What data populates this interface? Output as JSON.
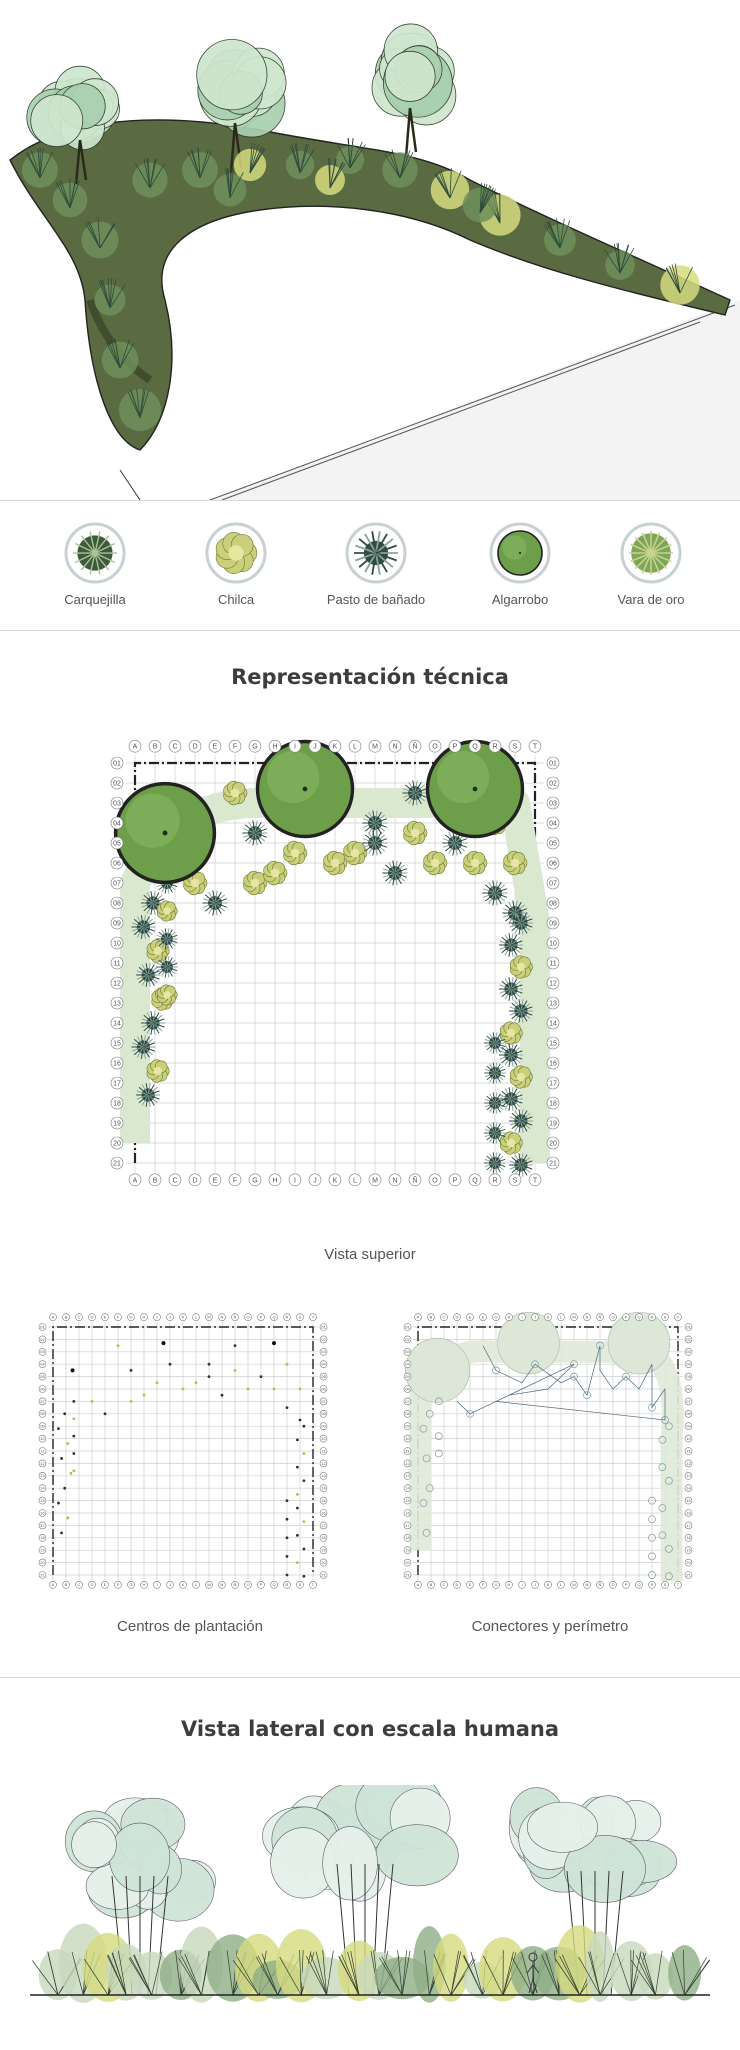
{
  "plants": [
    {
      "id": "carquejilla",
      "label": "Carquejilla",
      "fill": "#3e5a3a",
      "accent": "#a8c49a"
    },
    {
      "id": "chilca",
      "label": "Chilca",
      "fill": "#c9cf7a",
      "accent": "#6f7a35"
    },
    {
      "id": "pasto",
      "label": "Pasto de bañado",
      "fill": "#2f4b44",
      "accent": "#8aa39a"
    },
    {
      "id": "algarrobo",
      "label": "Algarrobo",
      "fill": "#6d9f4a",
      "accent": "#2f5a22"
    },
    {
      "id": "vara",
      "label": "Vara de oro",
      "fill": "#7fa55a",
      "accent": "#c7d58a"
    }
  ],
  "sections": {
    "technical_title": "Representación técnica",
    "side_title": "Vista lateral con escala humana"
  },
  "captions": {
    "top_view": "Vista superior",
    "centers": "Centros de plantación",
    "connectors": "Conectores y perímetro"
  },
  "grid": {
    "columns": [
      "A",
      "B",
      "C",
      "D",
      "E",
      "F",
      "G",
      "H",
      "I",
      "J",
      "K",
      "L",
      "M",
      "N",
      "Ñ",
      "O",
      "P",
      "Q",
      "R",
      "S",
      "T"
    ],
    "rows": [
      "01",
      "02",
      "03",
      "04",
      "05",
      "06",
      "07",
      "08",
      "09",
      "10",
      "11",
      "12",
      "13",
      "14",
      "15",
      "16",
      "17",
      "18",
      "19",
      "20",
      "21"
    ]
  },
  "colors": {
    "foliage_light": "#cfe6cf",
    "foliage_mid": "#6f8f5a",
    "foliage_dark": "#2e3f2a",
    "chilca_yellow": "#d6db7e",
    "grid_line": "#cfcfcf",
    "ink": "#222222"
  }
}
